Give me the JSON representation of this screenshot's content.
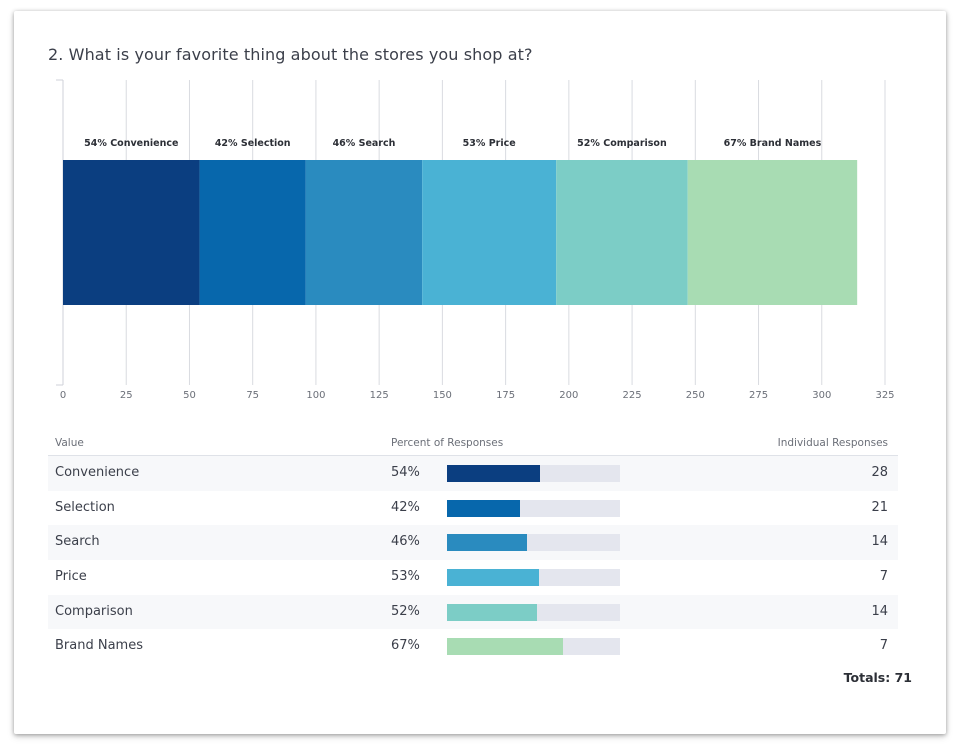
{
  "question": "2. What is your favorite thing about the stores you shop at?",
  "chart_data": {
    "type": "bar",
    "orientation": "horizontal-stacked",
    "categories": [
      "Convenience",
      "Selection",
      "Search",
      "Price",
      "Comparison",
      "Brand Names"
    ],
    "values": [
      54,
      42,
      46,
      53,
      52,
      67
    ],
    "segment_labels": [
      "54% Convenience",
      "42% Selection",
      "46% Search",
      "53% Price",
      "52% Comparison",
      "67% Brand Names"
    ],
    "colors": [
      "#0b3e80",
      "#0767ac",
      "#2a8bbf",
      "#4ab2d4",
      "#7ccdc6",
      "#a8dcb3"
    ],
    "xlim": [
      0,
      325
    ],
    "xticks": [
      0,
      25,
      50,
      75,
      100,
      125,
      150,
      175,
      200,
      225,
      250,
      275,
      300,
      325
    ],
    "grid": true
  },
  "table": {
    "headers": {
      "value": "Value",
      "percent": "Percent of Responses",
      "count": "Individual Responses"
    },
    "rows": [
      {
        "value": "Convenience",
        "percent": "54%",
        "fraction": 0.54,
        "count": "28",
        "color": "#0b3e80"
      },
      {
        "value": "Selection",
        "percent": "42%",
        "fraction": 0.42,
        "count": "21",
        "color": "#0767ac"
      },
      {
        "value": "Search",
        "percent": "46%",
        "fraction": 0.46,
        "count": "14",
        "color": "#2a8bbf"
      },
      {
        "value": "Price",
        "percent": "53%",
        "fraction": 0.53,
        "count": "7",
        "color": "#4ab2d4"
      },
      {
        "value": "Comparison",
        "percent": "52%",
        "fraction": 0.52,
        "count": "14",
        "color": "#7ccdc6"
      },
      {
        "value": "Brand Names",
        "percent": "67%",
        "fraction": 0.67,
        "count": "7",
        "color": "#a8dcb3"
      }
    ],
    "totals": "Totals: 71"
  }
}
